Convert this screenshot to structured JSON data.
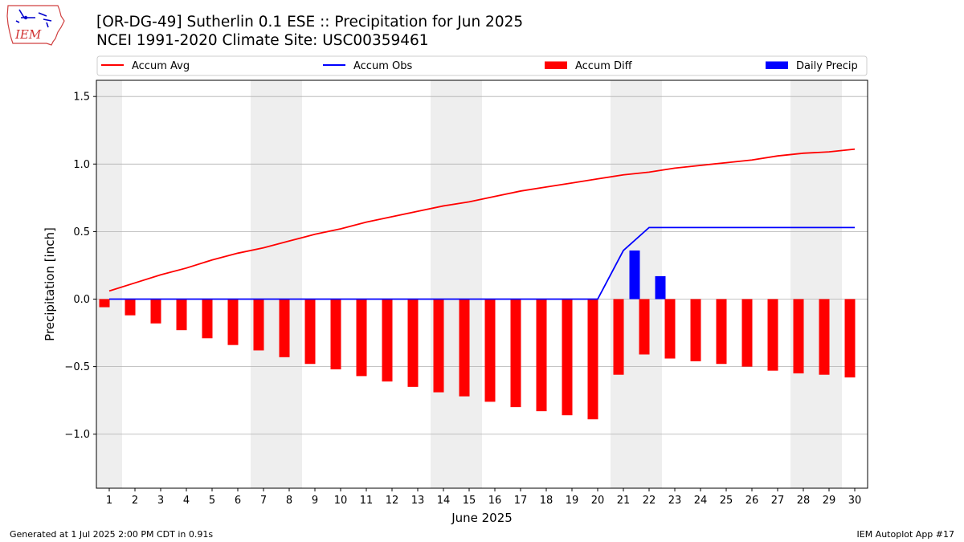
{
  "header": {
    "title_line1": "[OR-DG-49] Sutherlin 0.1 ESE :: Precipitation for Jun 2025",
    "title_line2": "NCEI 1991-2020 Climate Site: USC00359461",
    "logo_text": "IEM"
  },
  "footer": {
    "generated": "Generated at 1 Jul 2025 2:00 PM CDT in 0.91s",
    "app": "IEM Autoplot App #17"
  },
  "colors": {
    "avg": "#ff0000",
    "obs": "#0000ff",
    "diff": "#ff0000",
    "daily": "#0000ff",
    "weekend_shade": "#eeeeee",
    "grid": "#b0b0b0"
  },
  "chart_data": {
    "type": "bar",
    "xlabel": "June 2025",
    "ylabel": "Precipitation [inch]",
    "ylim": [
      -1.4,
      1.62
    ],
    "yticks": [
      1.5,
      1.0,
      0.5,
      0.0,
      -0.5,
      -1.0
    ],
    "ytick_labels": [
      "1.5",
      "1.0",
      "0.5",
      "0.0",
      "−0.5",
      "−1.0"
    ],
    "grid": "horizontal",
    "legend_placement": "top, above plot",
    "legend": [
      {
        "label": "Accum Avg",
        "kind": "line",
        "color": "#ff0000"
      },
      {
        "label": "Accum Obs",
        "kind": "line",
        "color": "#0000ff"
      },
      {
        "label": "Accum Diff",
        "kind": "bar",
        "color": "#ff0000"
      },
      {
        "label": "Daily Precip",
        "kind": "bar",
        "color": "#0000ff"
      }
    ],
    "shaded_days": [
      1,
      7,
      8,
      14,
      15,
      21,
      22,
      28,
      29
    ],
    "days": [
      1,
      2,
      3,
      4,
      5,
      6,
      7,
      8,
      9,
      10,
      11,
      12,
      13,
      14,
      15,
      16,
      17,
      18,
      19,
      20,
      21,
      22,
      23,
      24,
      25,
      26,
      27,
      28,
      29,
      30
    ],
    "accum_avg": [
      0.06,
      0.12,
      0.18,
      0.23,
      0.29,
      0.34,
      0.38,
      0.43,
      0.48,
      0.52,
      0.57,
      0.61,
      0.65,
      0.69,
      0.72,
      0.76,
      0.8,
      0.83,
      0.86,
      0.89,
      0.92,
      0.94,
      0.97,
      0.99,
      1.01,
      1.03,
      1.06,
      1.08,
      1.09,
      1.11
    ],
    "accum_obs": [
      0,
      0,
      0,
      0,
      0,
      0,
      0,
      0,
      0,
      0,
      0,
      0,
      0,
      0,
      0,
      0,
      0,
      0,
      0,
      0,
      0.36,
      0.53,
      0.53,
      0.53,
      0.53,
      0.53,
      0.53,
      0.53,
      0.53,
      0.53
    ],
    "accum_diff": [
      -0.06,
      -0.12,
      -0.18,
      -0.23,
      -0.29,
      -0.34,
      -0.38,
      -0.43,
      -0.48,
      -0.52,
      -0.57,
      -0.61,
      -0.65,
      -0.69,
      -0.72,
      -0.76,
      -0.8,
      -0.83,
      -0.86,
      -0.89,
      -0.56,
      -0.41,
      -0.44,
      -0.46,
      -0.48,
      -0.5,
      -0.53,
      -0.55,
      -0.56,
      -0.58
    ],
    "daily_precip": [
      0,
      0,
      0,
      0,
      0,
      0,
      0,
      0,
      0,
      0,
      0,
      0,
      0,
      0,
      0,
      0,
      0,
      0,
      0,
      0,
      0.36,
      0.17,
      0,
      0,
      0,
      0,
      0,
      0,
      0,
      0
    ]
  }
}
